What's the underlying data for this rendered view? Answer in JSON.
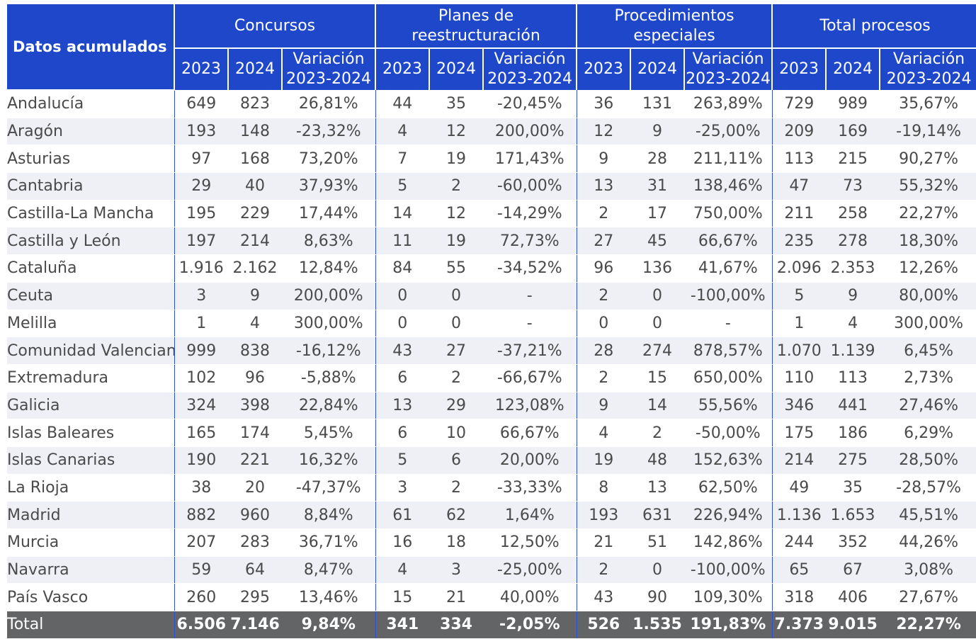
{
  "header": {
    "corner": "Datos acumulados",
    "groups": [
      "Concursos",
      "Planes de reestructuración",
      "Procedimientos especiales",
      "Total procesos"
    ],
    "sub": [
      "2023",
      "2024",
      "Variación 2023-2024"
    ]
  },
  "rows": [
    [
      "Andalucía",
      "649",
      "823",
      "26,81%",
      "44",
      "35",
      "-20,45%",
      "36",
      "131",
      "263,89%",
      "729",
      "989",
      "35,67%"
    ],
    [
      "Aragón",
      "193",
      "148",
      "-23,32%",
      "4",
      "12",
      "200,00%",
      "12",
      "9",
      "-25,00%",
      "209",
      "169",
      "-19,14%"
    ],
    [
      "Asturias",
      "97",
      "168",
      "73,20%",
      "7",
      "19",
      "171,43%",
      "9",
      "28",
      "211,11%",
      "113",
      "215",
      "90,27%"
    ],
    [
      "Cantabria",
      "29",
      "40",
      "37,93%",
      "5",
      "2",
      "-60,00%",
      "13",
      "31",
      "138,46%",
      "47",
      "73",
      "55,32%"
    ],
    [
      "Castilla-La Mancha",
      "195",
      "229",
      "17,44%",
      "14",
      "12",
      "-14,29%",
      "2",
      "17",
      "750,00%",
      "211",
      "258",
      "22,27%"
    ],
    [
      "Castilla y León",
      "197",
      "214",
      "8,63%",
      "11",
      "19",
      "72,73%",
      "27",
      "45",
      "66,67%",
      "235",
      "278",
      "18,30%"
    ],
    [
      "Cataluña",
      "1.916",
      "2.162",
      "12,84%",
      "84",
      "55",
      "-34,52%",
      "96",
      "136",
      "41,67%",
      "2.096",
      "2.353",
      "12,26%"
    ],
    [
      "Ceuta",
      "3",
      "9",
      "200,00%",
      "0",
      "0",
      "-",
      "2",
      "0",
      "-100,00%",
      "5",
      "9",
      "80,00%"
    ],
    [
      "Melilla",
      "1",
      "4",
      "300,00%",
      "0",
      "0",
      "-",
      "0",
      "0",
      "-",
      "1",
      "4",
      "300,00%"
    ],
    [
      "Comunidad Valenciana",
      "999",
      "838",
      "-16,12%",
      "43",
      "27",
      "-37,21%",
      "28",
      "274",
      "878,57%",
      "1.070",
      "1.139",
      "6,45%"
    ],
    [
      "Extremadura",
      "102",
      "96",
      "-5,88%",
      "6",
      "2",
      "-66,67%",
      "2",
      "15",
      "650,00%",
      "110",
      "113",
      "2,73%"
    ],
    [
      "Galicia",
      "324",
      "398",
      "22,84%",
      "13",
      "29",
      "123,08%",
      "9",
      "14",
      "55,56%",
      "346",
      "441",
      "27,46%"
    ],
    [
      "Islas Baleares",
      "165",
      "174",
      "5,45%",
      "6",
      "10",
      "66,67%",
      "4",
      "2",
      "-50,00%",
      "175",
      "186",
      "6,29%"
    ],
    [
      "Islas Canarias",
      "190",
      "221",
      "16,32%",
      "5",
      "6",
      "20,00%",
      "19",
      "48",
      "152,63%",
      "214",
      "275",
      "28,50%"
    ],
    [
      "La Rioja",
      "38",
      "20",
      "-47,37%",
      "3",
      "2",
      "-33,33%",
      "8",
      "13",
      "62,50%",
      "49",
      "35",
      "-28,57%"
    ],
    [
      "Madrid",
      "882",
      "960",
      "8,84%",
      "61",
      "62",
      "1,64%",
      "193",
      "631",
      "226,94%",
      "1.136",
      "1.653",
      "45,51%"
    ],
    [
      "Murcia",
      "207",
      "283",
      "36,71%",
      "16",
      "18",
      "12,50%",
      "21",
      "51",
      "142,86%",
      "244",
      "352",
      "44,26%"
    ],
    [
      "Navarra",
      "59",
      "64",
      "8,47%",
      "4",
      "3",
      "-25,00%",
      "2",
      "0",
      "-100,00%",
      "65",
      "67",
      "3,08%"
    ],
    [
      "País Vasco",
      "260",
      "295",
      "13,46%",
      "15",
      "21",
      "40,00%",
      "43",
      "90",
      "109,30%",
      "318",
      "406",
      "27,67%"
    ]
  ],
  "total": [
    "Total",
    "6.506",
    "7.146",
    "9,84%",
    "341",
    "334",
    "-2,05%",
    "526",
    "1.535",
    "191,83%",
    "7.373",
    "9.015",
    "22,27%"
  ]
}
